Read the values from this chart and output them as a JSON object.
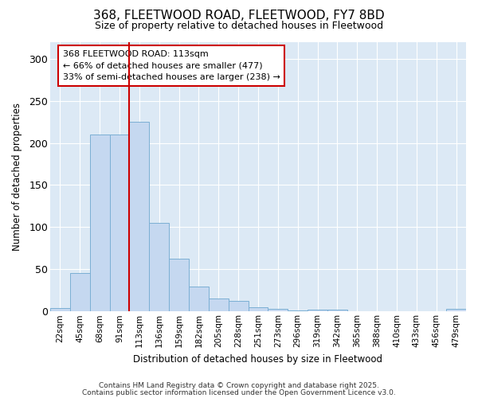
{
  "title": "368, FLEETWOOD ROAD, FLEETWOOD, FY7 8BD",
  "subtitle": "Size of property relative to detached houses in Fleetwood",
  "xlabel": "Distribution of detached houses by size in Fleetwood",
  "ylabel": "Number of detached properties",
  "bar_color": "#c5d8f0",
  "bar_edge_color": "#7bafd4",
  "fig_background_color": "#ffffff",
  "plot_background_color": "#dce9f5",
  "grid_color": "#ffffff",
  "annotation_box_color": "#ffffff",
  "annotation_border_color": "#cc0000",
  "vline_color": "#cc0000",
  "vline_index": 4,
  "annotation_text_line1": "368 FLEETWOOD ROAD: 113sqm",
  "annotation_text_line2": "← 66% of detached houses are smaller (477)",
  "annotation_text_line3": "33% of semi-detached houses are larger (238) →",
  "categories": [
    "22sqm",
    "45sqm",
    "68sqm",
    "91sqm",
    "113sqm",
    "136sqm",
    "159sqm",
    "182sqm",
    "205sqm",
    "228sqm",
    "251sqm",
    "273sqm",
    "296sqm",
    "319sqm",
    "342sqm",
    "365sqm",
    "388sqm",
    "410sqm",
    "433sqm",
    "456sqm",
    "479sqm"
  ],
  "values": [
    4,
    46,
    210,
    210,
    225,
    105,
    63,
    30,
    15,
    13,
    5,
    3,
    1,
    2,
    2,
    0,
    0,
    0,
    0,
    0,
    3
  ],
  "ylim": [
    0,
    320
  ],
  "yticks": [
    0,
    50,
    100,
    150,
    200,
    250,
    300
  ],
  "footer_line1": "Contains HM Land Registry data © Crown copyright and database right 2025.",
  "footer_line2": "Contains public sector information licensed under the Open Government Licence v3.0."
}
